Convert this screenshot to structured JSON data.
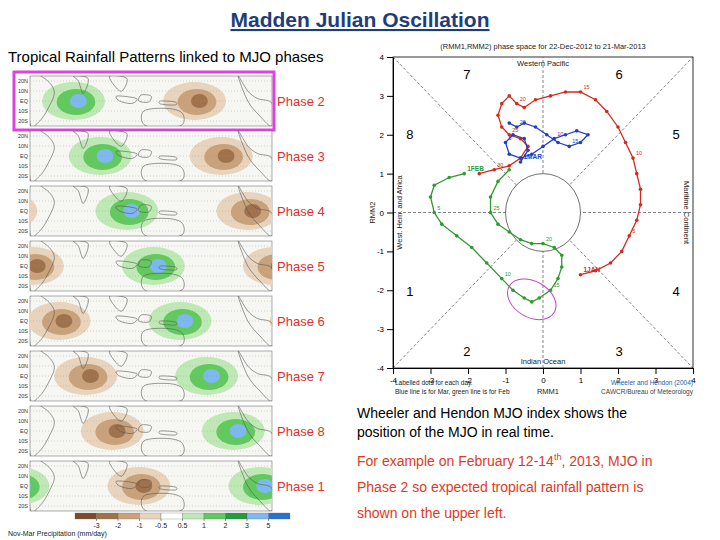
{
  "title": "Madden Julian Oscillation",
  "left_panel": {
    "title": "Tropical Rainfall Patterns linked to MJO phases",
    "phase_labels": [
      "Phase 2",
      "Phase 3",
      "Phase 4",
      "Phase 5",
      "Phase 6",
      "Phase 7",
      "Phase 8",
      "Phase 1"
    ],
    "lat_labels": [
      "20N",
      "10N",
      "EQ",
      "10S",
      "20S"
    ],
    "colorbar": {
      "label": "Nov-Mar Precipitation (mm/day)",
      "ticks": [
        -3,
        -2,
        -1,
        -0.5,
        0.5,
        1,
        2,
        3,
        5
      ],
      "colors": [
        "#7b4b2a",
        "#a0724c",
        "#c9a27c",
        "#e8d4bc",
        "#ffffff",
        "#bfe9b4",
        "#62c95e",
        "#239c3e",
        "#7cb9f0",
        "#2b6fd1"
      ]
    }
  },
  "chart_data": {
    "type": "line",
    "title": "(RMM1,RMM2) phase space for 22-Dec-2012 to 21-Mar-2013",
    "x_label": "RMM1",
    "y_label": "RMM2",
    "xlim": [
      -4,
      4
    ],
    "ylim": [
      -4,
      4
    ],
    "xticks": [
      -4,
      -3,
      -2,
      -1,
      0,
      1,
      2,
      3,
      4
    ],
    "yticks": [
      -4,
      -3,
      -2,
      -1,
      0,
      1,
      2,
      3,
      4
    ],
    "grid": false,
    "marker": "circle",
    "phases": [
      1,
      2,
      3,
      4,
      5,
      6,
      7,
      8
    ],
    "regions": [
      "Indian Ocean",
      "Maritime Continent",
      "Western Pacific",
      "West. Hem. and Africa"
    ],
    "footnotes": [
      "Labelled dots for each day.",
      "Blue line is for Mar, green line is for Feb"
    ],
    "credits": [
      "Wheeler and Hendon (2004)",
      "CAWCR/Bureau of Meteorology"
    ],
    "series": [
      {
        "color": "#d42a1e",
        "x": [
          1.0,
          1.4,
          1.8,
          2.1,
          2.3,
          2.5,
          2.6,
          2.6,
          2.5,
          2.4,
          2.2,
          2.0,
          1.7,
          1.4,
          1.0,
          0.6,
          0.2,
          -0.2,
          -0.5,
          -0.7,
          -0.9,
          -1.1,
          -1.2,
          -1.1,
          -0.9,
          -0.6,
          -0.4,
          -0.6,
          -0.9,
          -1.3,
          -1.7
        ],
        "values": [
          -1.6,
          -1.5,
          -1.3,
          -1.0,
          -0.6,
          -0.2,
          0.2,
          0.6,
          1.0,
          1.4,
          1.8,
          2.2,
          2.6,
          2.9,
          3.1,
          3.1,
          3.0,
          2.9,
          2.7,
          2.8,
          3.0,
          2.8,
          2.5,
          2.2,
          2.0,
          1.9,
          1.7,
          1.4,
          1.2,
          1.1,
          1.0
        ],
        "point_labels": [
          "1JAN",
          null,
          null,
          null,
          "5",
          null,
          null,
          null,
          null,
          "10",
          null,
          null,
          null,
          null,
          "15",
          null,
          null,
          null,
          null,
          "20",
          null,
          null,
          null,
          null,
          "25",
          null,
          null,
          null,
          null,
          "30",
          null
        ]
      },
      {
        "color": "#2f9a2f",
        "x": [
          -2.1,
          -2.5,
          -2.9,
          -3.0,
          -2.9,
          -2.7,
          -2.3,
          -1.9,
          -1.5,
          -1.1,
          -0.8,
          -0.5,
          -0.3,
          -0.1,
          0.2,
          0.4,
          0.5,
          0.5,
          0.3,
          0.0,
          -0.3,
          -0.6,
          -0.9,
          -1.2,
          -1.4,
          -1.4,
          -1.2,
          -0.9
        ],
        "values": [
          1.0,
          0.9,
          0.7,
          0.4,
          0.0,
          -0.3,
          -0.6,
          -0.9,
          -1.3,
          -1.7,
          -2.0,
          -2.2,
          -2.3,
          -2.2,
          -2.0,
          -1.7,
          -1.4,
          -1.1,
          -0.9,
          -0.8,
          -0.8,
          -0.7,
          -0.5,
          -0.3,
          0.0,
          0.4,
          0.8,
          1.1
        ],
        "point_labels": [
          "1FEB",
          null,
          null,
          null,
          "5",
          null,
          null,
          null,
          null,
          "10",
          null,
          null,
          null,
          null,
          "15",
          null,
          null,
          null,
          null,
          "20",
          null,
          null,
          null,
          null,
          "25",
          null,
          null,
          null
        ]
      },
      {
        "color": "#1f3fc4",
        "x": [
          -0.6,
          -0.4,
          -0.5,
          -0.8,
          -1.0,
          -0.9,
          -0.6,
          -0.3,
          0.0,
          0.3,
          0.6,
          0.9,
          1.2,
          1.0,
          0.7,
          0.4,
          0.1,
          -0.2,
          -0.5,
          -0.7,
          -0.9
        ],
        "values": [
          1.3,
          1.6,
          1.9,
          2.0,
          1.8,
          1.5,
          1.4,
          1.5,
          1.7,
          1.9,
          2.0,
          2.1,
          2.0,
          1.8,
          1.7,
          1.8,
          2.0,
          2.2,
          2.3,
          2.2,
          2.3
        ],
        "point_labels": [
          "1MAR",
          null,
          null,
          null,
          "5",
          null,
          null,
          null,
          null,
          "10",
          null,
          null,
          null,
          null,
          "15",
          null,
          null,
          null,
          null,
          "20",
          null
        ]
      }
    ]
  },
  "notes": [
    {
      "color": "#000000",
      "lines": [
        [
          "Wheeler and Hendon MJO index shows the"
        ],
        [
          "position of the MJO in real time."
        ]
      ]
    },
    {
      "color": "#e03a1e",
      "lines": [
        [
          "For example on February 12-14",
          "th",
          ", 2013, MJO in"
        ],
        [
          "Phase 2 so expected tropical rainfall pattern is"
        ],
        [
          "shown on the upper left."
        ]
      ]
    }
  ]
}
